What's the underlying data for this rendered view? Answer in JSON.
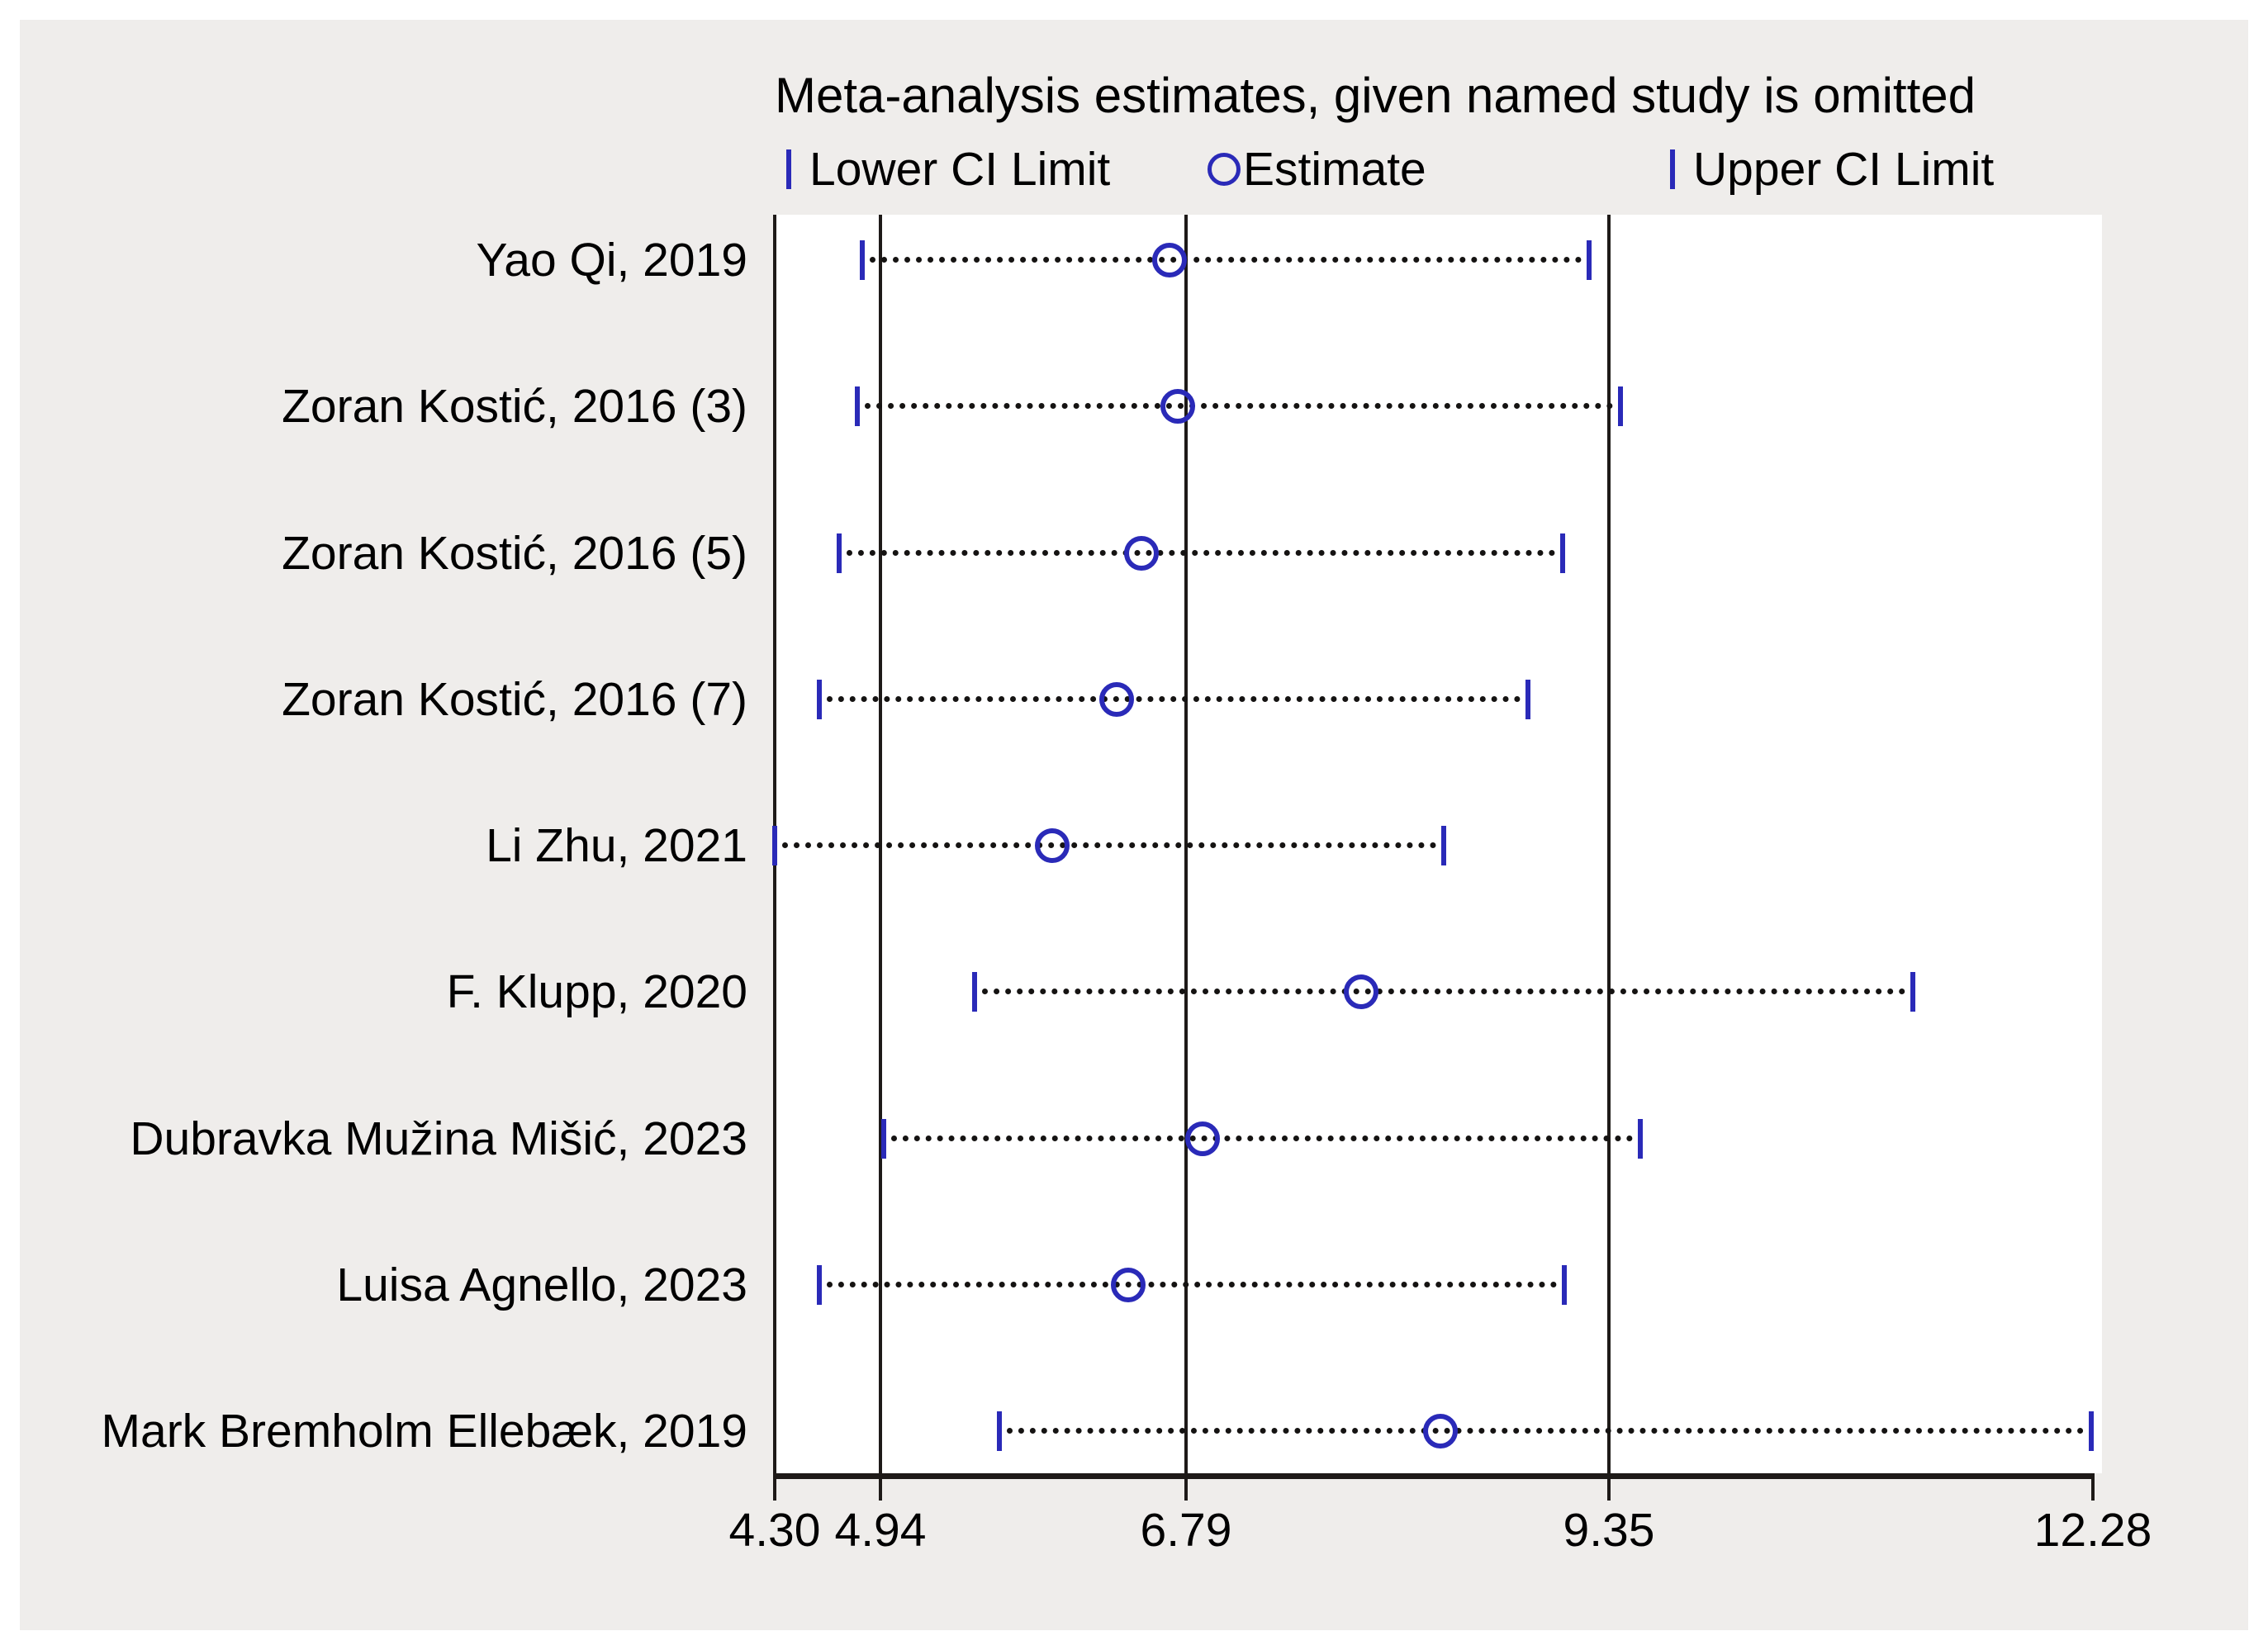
{
  "title": "Meta-analysis estimates, given named study is omitted",
  "legend": {
    "lower_label": "Lower CI Limit",
    "estimate_label": "Estimate",
    "upper_label": "Upper CI Limit"
  },
  "colors": {
    "marker_blue": "#2a2ab8",
    "line_dark": "#1e1a18",
    "panel_background": "#efedeb",
    "plot_background": "#ffffff",
    "text": "#000000"
  },
  "chart_data": {
    "type": "scatter",
    "variant": "leave-one-out-forest",
    "title": "Meta-analysis estimates, given named study is omitted",
    "categories": [
      "Yao Qi, 2019",
      "Zoran Kostić, 2016 (3)",
      "Zoran Kostić, 2016 (5)",
      "Zoran Kostić, 2016 (7)",
      "Li Zhu, 2021",
      "F. Klupp, 2020",
      "Dubravka Mužina Mišić, 2023",
      "Luisa Agnello, 2023",
      "Mark Bremholm Ellebæk, 2019"
    ],
    "series": [
      {
        "name": "Lower CI Limit",
        "marker": "vertical-bar",
        "values": [
          4.83,
          4.8,
          4.69,
          4.57,
          4.3,
          5.51,
          4.96,
          4.57,
          5.66
        ]
      },
      {
        "name": "Estimate",
        "marker": "open-circle",
        "values": [
          6.69,
          6.74,
          6.52,
          6.37,
          5.98,
          7.85,
          6.89,
          6.44,
          8.33
        ]
      },
      {
        "name": "Upper CI Limit",
        "marker": "vertical-bar",
        "values": [
          9.23,
          9.42,
          9.07,
          8.86,
          8.35,
          11.19,
          9.54,
          9.08,
          12.27
        ]
      }
    ],
    "connector": "dotted-line-between-ci-limits",
    "x_ticks": [
      4.3,
      4.94,
      6.79,
      9.35,
      12.28
    ],
    "x_tick_labels": [
      "4.30",
      "4.94",
      "6.79",
      "9.35",
      "12.28"
    ],
    "ref_lines": [
      4.94,
      6.79,
      9.35
    ],
    "xlim": [
      4.3,
      12.34
    ],
    "ylabel": "",
    "xlabel": "",
    "grid": false,
    "legend_position": "top"
  }
}
